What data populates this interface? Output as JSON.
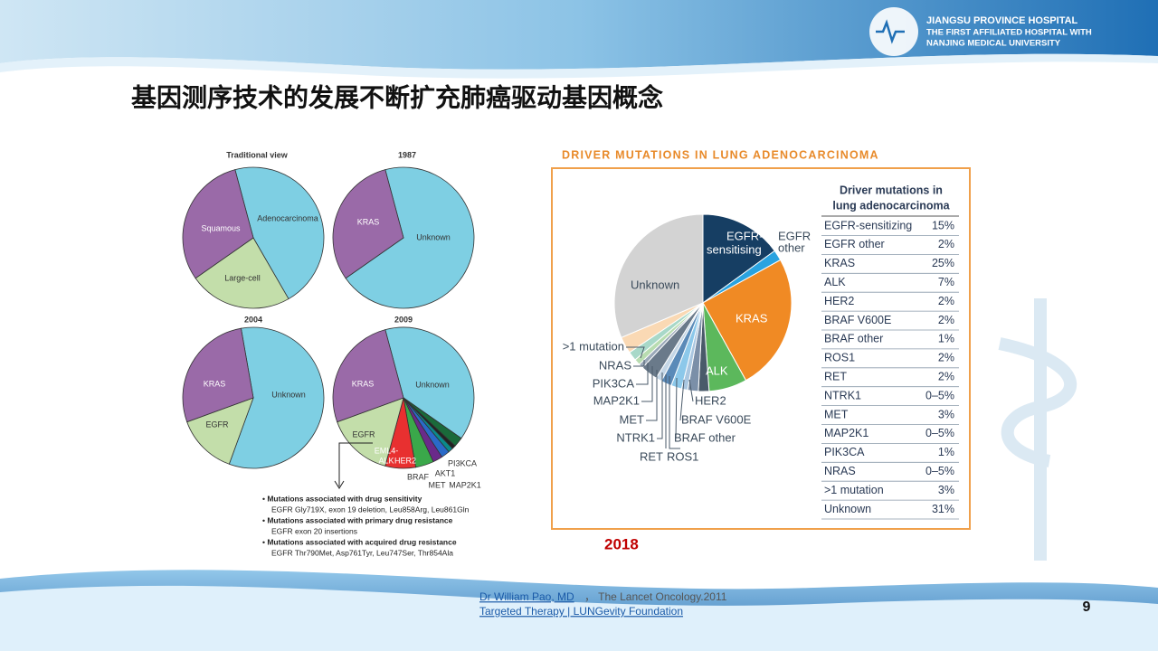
{
  "header": {
    "hospital_lines": [
      "JIANGSU PROVINCE HOSPITAL",
      "THE FIRST AFFILIATED HOSPITAL WITH",
      "NANJING MEDICAL UNIVERSITY"
    ]
  },
  "title": "基因测序技术的发展不断扩充肺癌驱动基因概念",
  "figure_left": {
    "pies": [
      {
        "title": "Traditional view",
        "labels": [
          "Adenocarcinoma",
          "Squamous",
          "Large-cell"
        ]
      },
      {
        "title": "1987",
        "labels": [
          "KRAS",
          "Unknown"
        ]
      },
      {
        "title": "2004",
        "labels": [
          "KRAS",
          "Unknown",
          "EGFR"
        ]
      },
      {
        "title": "2009",
        "labels": [
          "KRAS",
          "Unknown",
          "EGFR",
          "EML4-",
          "ALK",
          "HER2",
          "BRAF",
          "MET",
          "AKT1",
          "MAP2K1",
          "PI3KCA"
        ]
      }
    ],
    "notes": [
      "• Mutations associated with drug sensitivity",
      "EGFR Gly719X, exon 19 deletion, Leu858Arg, Leu861Gln",
      "• Mutations associated with primary drug resistance",
      "EGFR exon 20 insertions",
      "• Mutations associated with acquired drug resistance",
      "EGFR Thr790Met, Asp761Tyr, Leu747Ser, Thr854Ala"
    ]
  },
  "figure_right": {
    "heading": "DRIVER MUTATIONS IN LUNG ADENOCARCINOMA",
    "pie_labels": [
      "EGFR-",
      "sensitising",
      "EGFR",
      "other",
      "KRAS",
      "ALK",
      "Unknown",
      ">1 mutation",
      "NRAS",
      "PIK3CA",
      "MAP2K1",
      "MET",
      "NTRK1",
      "RET",
      "ROS1",
      "BRAF other",
      "BRAF V600E",
      "HER2"
    ],
    "table": {
      "header": [
        "Driver mutations in",
        "lung adenocarcinoma"
      ],
      "rows": [
        [
          "EGFR-sensitizing",
          "15%"
        ],
        [
          "EGFR other",
          "2%"
        ],
        [
          "KRAS",
          "25%"
        ],
        [
          "ALK",
          "7%"
        ],
        [
          "HER2",
          "2%"
        ],
        [
          "BRAF V600E",
          "2%"
        ],
        [
          "BRAF other",
          "1%"
        ],
        [
          "ROS1",
          "2%"
        ],
        [
          "RET",
          "2%"
        ],
        [
          "NTRK1",
          "0–5%"
        ],
        [
          "MET",
          "3%"
        ],
        [
          "MAP2K1",
          "0–5%"
        ],
        [
          "PIK3CA",
          "1%"
        ],
        [
          "NRAS",
          "0–5%"
        ],
        [
          ">1 mutation",
          "3%"
        ],
        [
          "Unknown",
          "31%"
        ]
      ]
    }
  },
  "year": "2018",
  "footer": {
    "author": "Dr William Pao, MD",
    "journal": "，  The Lancet Oncology.2011",
    "source": "Targeted Therapy | LUNGevity Foundation"
  },
  "page_number": "9"
}
